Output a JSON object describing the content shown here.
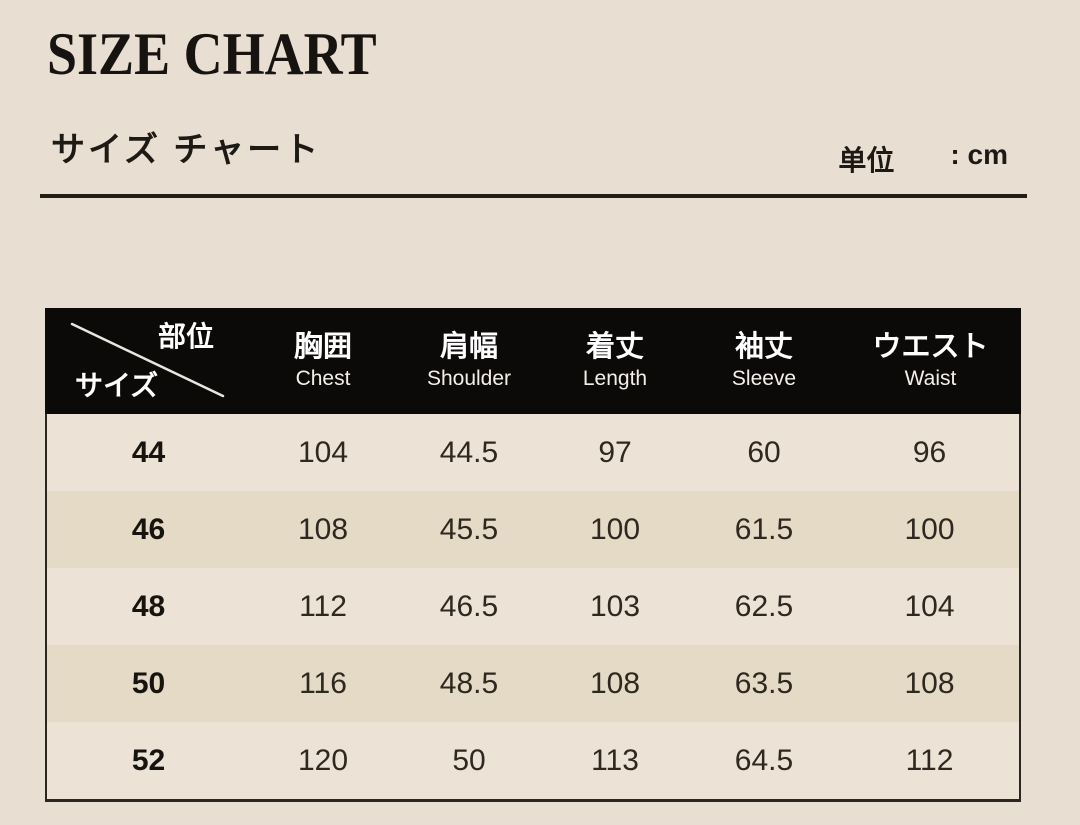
{
  "header": {
    "title": "SIZE CHART",
    "subtitle": "サイズ チャート",
    "unit_label": "单位",
    "unit_value": ": cm"
  },
  "chart_data": {
    "type": "table",
    "title": "SIZE CHART",
    "subtitle": "サイズ チャート",
    "unit": "cm",
    "corner": {
      "top_right": "部位",
      "bottom_left": "サイズ"
    },
    "columns": [
      {
        "jp": "胸囲",
        "en": "Chest"
      },
      {
        "jp": "肩幅",
        "en": "Shoulder"
      },
      {
        "jp": "着丈",
        "en": "Length"
      },
      {
        "jp": "袖丈",
        "en": "Sleeve"
      },
      {
        "jp": "ウエスト",
        "en": "Waist"
      }
    ],
    "rows": [
      {
        "size": "44",
        "values": [
          104,
          44.5,
          97,
          60,
          96
        ]
      },
      {
        "size": "46",
        "values": [
          108,
          45.5,
          100,
          61.5,
          100
        ]
      },
      {
        "size": "48",
        "values": [
          112,
          46.5,
          103,
          62.5,
          104
        ]
      },
      {
        "size": "50",
        "values": [
          116,
          48.5,
          108,
          63.5,
          108
        ]
      },
      {
        "size": "52",
        "values": [
          120,
          50,
          113,
          64.5,
          112
        ]
      }
    ]
  },
  "colors": {
    "background": "#e8ded1",
    "header_bg": "#0c0a08",
    "header_text": "#ffffff",
    "row_light": "#ece3d6",
    "row_dark": "#e5dac6",
    "body_text": "#2e2820",
    "border": "#2c2620",
    "rule": "#221d16"
  }
}
